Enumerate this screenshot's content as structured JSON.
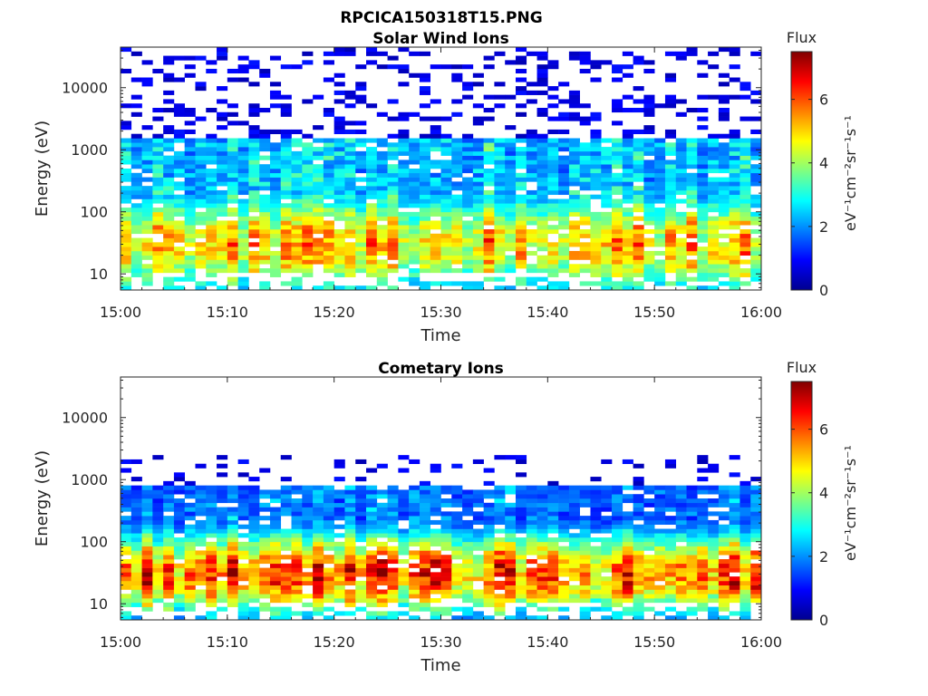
{
  "figure_title": "RPCICA150318T15.PNG",
  "colors": {
    "colormap": [
      "#00008f",
      "#0000ff",
      "#0080ff",
      "#00ffff",
      "#80ff80",
      "#ffff00",
      "#ff8000",
      "#ff0000",
      "#800000"
    ]
  },
  "chart_data": [
    {
      "type": "heatmap",
      "title": "Solar Wind Ions",
      "xlabel": "Time",
      "ylabel": "Energy (eV)",
      "x_range": [
        "15:00",
        "16:00"
      ],
      "x_ticks": [
        "15:00",
        "15:10",
        "15:20",
        "15:30",
        "15:40",
        "15:50",
        "16:00"
      ],
      "y_scale": "log",
      "y_range_eV": [
        5.5,
        45000
      ],
      "y_ticks": [
        "10",
        "100",
        "1000",
        "10000"
      ],
      "colorbar": {
        "label": "Flux",
        "unit_label": "eV⁻¹cm⁻²sr⁻¹s⁻¹",
        "range": [
          0,
          7.5
        ],
        "ticks": [
          "0",
          "2",
          "4",
          "6"
        ]
      },
      "grid": false,
      "profile": {
        "peak_energy_eV": 30,
        "peak_flux": 5.0,
        "core_spread_decades": 0.9,
        "tail_flux": 3.0,
        "tail_cutoff_eV": 1600,
        "sparse_high_energy": true
      }
    },
    {
      "type": "heatmap",
      "title": "Cometary Ions",
      "xlabel": "Time",
      "ylabel": "Energy (eV)",
      "x_range": [
        "15:00",
        "16:00"
      ],
      "x_ticks": [
        "15:00",
        "15:10",
        "15:20",
        "15:30",
        "15:40",
        "15:50",
        "16:00"
      ],
      "y_scale": "log",
      "y_range_eV": [
        5.5,
        45000
      ],
      "y_ticks": [
        "10",
        "100",
        "1000",
        "10000"
      ],
      "colorbar": {
        "label": "Flux",
        "unit_label": "eV⁻¹cm⁻²sr⁻¹s⁻¹",
        "range": [
          0,
          7.5
        ],
        "ticks": [
          "0",
          "2",
          "4",
          "6"
        ]
      },
      "grid": false,
      "profile": {
        "peak_energy_eV": 30,
        "peak_flux": 5.8,
        "core_spread_decades": 0.75,
        "tail_flux": 2.2,
        "tail_cutoff_eV": 800,
        "sparse_high_energy": false
      }
    }
  ]
}
